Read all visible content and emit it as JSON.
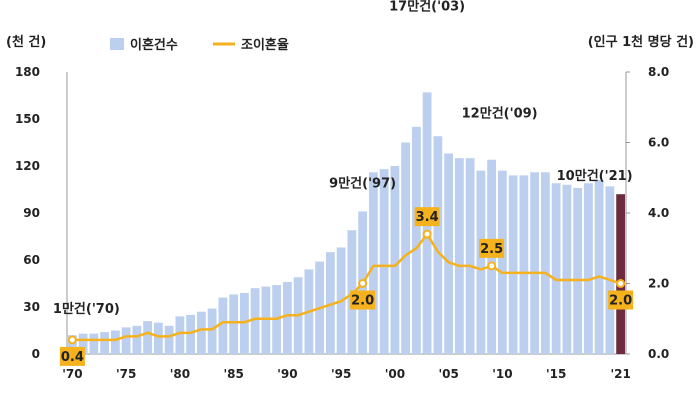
{
  "chart_data": {
    "type": "bar+line",
    "units": {
      "left": "(천 건)",
      "right": "(인구 1천 명당 건)"
    },
    "legend": {
      "bar": "이혼건수",
      "line": "조이혼율"
    },
    "y_left": {
      "min": 0,
      "max": 180,
      "ticks": [
        "0",
        "30",
        "60",
        "90",
        "120",
        "150",
        "180"
      ]
    },
    "y_right": {
      "min": 0,
      "max": 8,
      "ticks": [
        "0.0",
        "2.0",
        "4.0",
        "6.0",
        "8.0"
      ]
    },
    "x_tick_labels": [
      {
        "year": 1970,
        "label": "'70"
      },
      {
        "year": 1975,
        "label": "'75"
      },
      {
        "year": 1980,
        "label": "'80"
      },
      {
        "year": 1985,
        "label": "'85"
      },
      {
        "year": 1990,
        "label": "'90"
      },
      {
        "year": 1995,
        "label": "'95"
      },
      {
        "year": 2000,
        "label": "'00"
      },
      {
        "year": 2005,
        "label": "'05"
      },
      {
        "year": 2010,
        "label": "'10"
      },
      {
        "year": 2015,
        "label": "'15"
      },
      {
        "year": 2021,
        "label": "'21"
      }
    ],
    "years": [
      1970,
      1971,
      1972,
      1973,
      1974,
      1975,
      1976,
      1977,
      1978,
      1979,
      1980,
      1981,
      1982,
      1983,
      1984,
      1985,
      1986,
      1987,
      1988,
      1989,
      1990,
      1991,
      1992,
      1993,
      1994,
      1995,
      1996,
      1997,
      1998,
      1999,
      2000,
      2001,
      2002,
      2003,
      2004,
      2005,
      2006,
      2007,
      2008,
      2009,
      2010,
      2011,
      2012,
      2013,
      2014,
      2015,
      2016,
      2017,
      2018,
      2019,
      2020,
      2021
    ],
    "divorces_thousand": [
      12,
      13,
      13,
      14,
      15,
      17,
      18,
      21,
      20,
      18,
      24,
      25,
      27,
      29,
      36,
      38,
      39,
      42,
      43,
      44,
      46,
      49,
      54,
      59,
      65,
      68,
      79,
      91,
      116,
      118,
      120,
      135,
      145,
      167,
      139,
      128,
      125,
      125,
      117,
      124,
      117,
      114,
      114,
      116,
      116,
      109,
      108,
      106,
      109,
      111,
      107,
      102
    ],
    "crude_divorce_rate": [
      0.4,
      0.4,
      0.4,
      0.4,
      0.4,
      0.5,
      0.5,
      0.6,
      0.5,
      0.5,
      0.6,
      0.6,
      0.7,
      0.7,
      0.9,
      0.9,
      0.9,
      1.0,
      1.0,
      1.0,
      1.1,
      1.1,
      1.2,
      1.3,
      1.4,
      1.5,
      1.7,
      2.0,
      2.5,
      2.5,
      2.5,
      2.8,
      3.0,
      3.4,
      2.9,
      2.6,
      2.5,
      2.5,
      2.4,
      2.5,
      2.3,
      2.3,
      2.3,
      2.3,
      2.3,
      2.1,
      2.1,
      2.1,
      2.1,
      2.2,
      2.1,
      2.0
    ],
    "highlight_year": 2021,
    "annotations": [
      {
        "year": 1970,
        "text": "1만건('70)"
      },
      {
        "year": 1997,
        "text": "9만건('97)"
      },
      {
        "year": 2003,
        "text": "17만건('03)"
      },
      {
        "year": 2009,
        "text": "12만건('09)"
      },
      {
        "year": 2021,
        "text": "10만건('21)"
      }
    ],
    "callouts": [
      {
        "year": 1970,
        "text": "0.4"
      },
      {
        "year": 1997,
        "text": "2.0"
      },
      {
        "year": 2003,
        "text": "3.4"
      },
      {
        "year": 2009,
        "text": "2.5"
      },
      {
        "year": 2021,
        "text": "2.0"
      }
    ],
    "colors": {
      "bar": "#bccfef",
      "bar_highlight": "#6b2c3e",
      "line": "#f5b21c",
      "callout_fill": "#f5b21c",
      "axis": "#999999"
    }
  }
}
